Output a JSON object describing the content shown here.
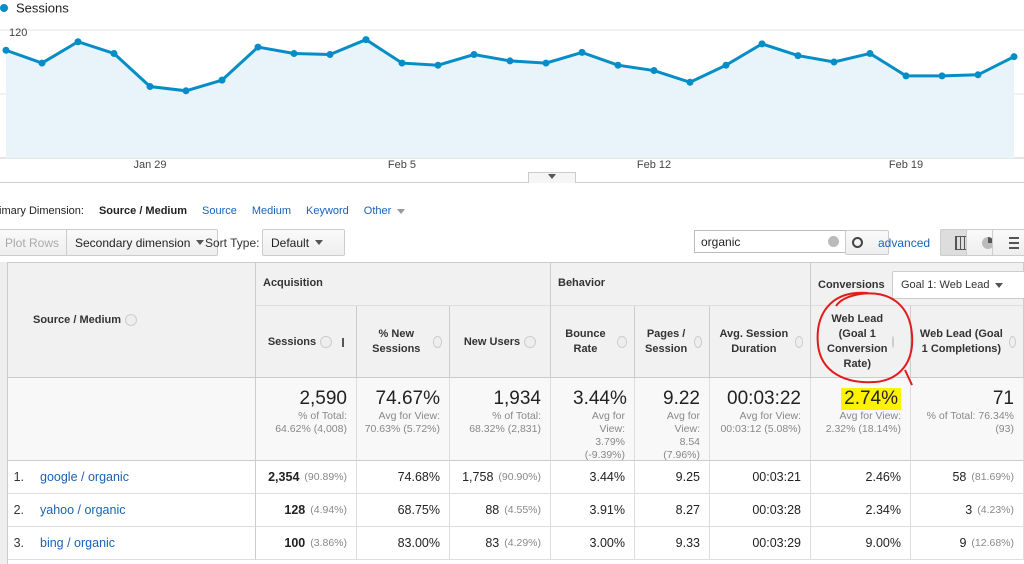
{
  "chart_data": {
    "type": "line",
    "categories": [
      null,
      null,
      null,
      null,
      "Jan 29",
      null,
      null,
      null,
      null,
      null,
      null,
      "Feb 5",
      null,
      null,
      null,
      null,
      null,
      null,
      "Feb 12",
      null,
      null,
      null,
      null,
      null,
      null,
      "Feb 19",
      null,
      null,
      null
    ],
    "series": [
      {
        "name": "Sessions",
        "color": "#058dc7",
        "values": [
          101,
          89,
          109,
          98,
          67,
          63,
          73,
          104,
          98,
          97,
          111,
          89,
          87,
          97,
          91,
          89,
          99,
          87,
          82,
          71,
          87,
          107,
          96,
          90,
          98,
          77,
          77,
          78,
          95
        ]
      }
    ],
    "ylim": [
      0,
      135
    ],
    "yticks": [
      60,
      120
    ],
    "grid": true
  },
  "dimension_bar": {
    "label": "Primary Dimension:",
    "options": [
      "Source / Medium",
      "Source",
      "Medium",
      "Keyword",
      "Other"
    ]
  },
  "toolbar": {
    "plot_rows": "Plot Rows",
    "secondary_dimension": "Secondary dimension",
    "sort_type_label": "Sort Type:",
    "sort_type": "Default",
    "search": "organic",
    "advanced": "advanced"
  },
  "table": {
    "groups": [
      "Acquisition",
      "Behavior",
      "Conversions"
    ],
    "goal": "Goal 1: Web Lead",
    "columns": [
      "Source / Medium",
      "Sessions",
      "% New Sessions",
      "New Users",
      "Bounce Rate",
      "Pages / Session",
      "Avg. Session Duration",
      "Web Lead (Goal 1 Conversion Rate)",
      "Web Lead (Goal 1 Completions)"
    ],
    "totals": [
      {
        "value": "2,590",
        "note": "% of Total: 64.62% (4,008)"
      },
      {
        "value": "74.67%",
        "note": "Avg for View: 70.63% (5.72%)"
      },
      {
        "value": "1,934",
        "note": "% of Total: 68.32% (2,831)"
      },
      {
        "value": "3.44%",
        "note": "Avg for View: 3.79% (-9.39%)"
      },
      {
        "value": "9.22",
        "note": "Avg for View: 8.54 (7.96%)"
      },
      {
        "value": "00:03:22",
        "note": "Avg for View: 00:03:12 (5.08%)"
      },
      {
        "value": "2.74%",
        "note": "Avg for View: 2.32% (18.14%)"
      },
      {
        "value": "71",
        "note": "% of Total: 76.34% (93)"
      }
    ],
    "rows": [
      {
        "rank": "1.",
        "source": "google / organic",
        "cells": [
          [
            "2,354",
            "(90.89%)"
          ],
          [
            "74.68%"
          ],
          [
            "1,758",
            "(90.90%)"
          ],
          [
            "3.44%"
          ],
          [
            "9.25"
          ],
          [
            "00:03:21"
          ],
          [
            "2.46%"
          ],
          [
            "58",
            "(81.69%)"
          ]
        ]
      },
      {
        "rank": "2.",
        "source": "yahoo / organic",
        "cells": [
          [
            "128",
            "(4.94%)"
          ],
          [
            "68.75%"
          ],
          [
            "88",
            "(4.55%)"
          ],
          [
            "3.91%"
          ],
          [
            "8.27"
          ],
          [
            "00:03:28"
          ],
          [
            "2.34%"
          ],
          [
            "3",
            "(4.23%)"
          ]
        ]
      },
      {
        "rank": "3.",
        "source": "bing / organic",
        "cells": [
          [
            "100",
            "(3.86%)"
          ],
          [
            "83.00%"
          ],
          [
            "83",
            "(4.29%)"
          ],
          [
            "3.00%"
          ],
          [
            "9.33"
          ],
          [
            "00:03:29"
          ],
          [
            "9.00%"
          ],
          [
            "9",
            "(12.68%)"
          ]
        ]
      }
    ]
  }
}
